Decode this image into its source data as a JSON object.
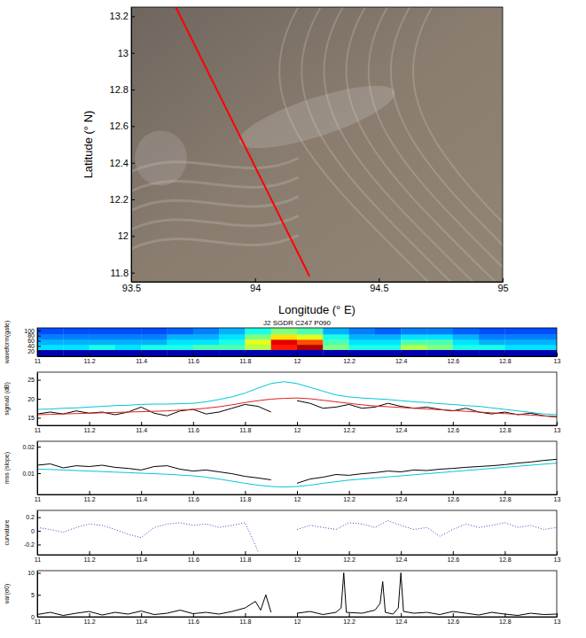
{
  "chart_data": [
    {
      "type": "map",
      "x_label": "Longitude (° E)",
      "y_label": "Latitude (° N)",
      "xlim": [
        93.5,
        95
      ],
      "ylim": [
        11.75,
        13.25
      ],
      "xticks": [
        93.5,
        94,
        94.5,
        95
      ],
      "yticks": [
        11.8,
        12,
        12.2,
        12.4,
        12.6,
        12.8,
        13,
        13.2
      ],
      "series": [
        {
          "type": "line",
          "color": "#ff0000",
          "x": [
            93.68,
            94.22
          ],
          "values": [
            13.25,
            11.78
          ]
        }
      ]
    },
    {
      "type": "heatmap",
      "title": "J2 SGDR C247 P090",
      "y_label": "waveform(gate)",
      "xlim": [
        11,
        13
      ],
      "ylim": [
        0,
        110
      ],
      "xticks": [
        11,
        11.2,
        11.4,
        11.6,
        11.8,
        12,
        12.2,
        12.4,
        12.6,
        12.8,
        13
      ],
      "yticks": [
        20,
        40,
        60,
        80,
        100
      ],
      "x_edges": [
        11,
        11.1,
        11.2,
        11.3,
        11.4,
        11.5,
        11.6,
        11.7,
        11.8,
        11.9,
        12,
        12.1,
        12.2,
        12.3,
        12.4,
        12.5,
        12.6,
        12.7,
        12.8,
        12.9,
        13
      ],
      "y_edges": [
        0,
        25,
        45,
        65,
        85,
        110
      ],
      "color_range": [
        0,
        1
      ],
      "cells": [
        [
          0.05,
          0.05,
          0.05,
          0.05,
          0.05,
          0.05,
          0.05,
          0.05,
          0.05,
          0.05,
          0.05,
          0.05,
          0.05,
          0.05,
          0.05,
          0.05,
          0.05,
          0.05,
          0.05,
          0.05
        ],
        [
          0.35,
          0.35,
          0.4,
          0.35,
          0.4,
          0.4,
          0.45,
          0.45,
          0.55,
          0.85,
          0.95,
          0.5,
          0.4,
          0.4,
          0.55,
          0.5,
          0.4,
          0.4,
          0.35,
          0.35
        ],
        [
          0.3,
          0.3,
          0.3,
          0.3,
          0.3,
          0.35,
          0.35,
          0.4,
          0.6,
          0.9,
          0.8,
          0.45,
          0.35,
          0.35,
          0.45,
          0.45,
          0.35,
          0.3,
          0.3,
          0.3
        ],
        [
          0.25,
          0.25,
          0.25,
          0.25,
          0.25,
          0.3,
          0.3,
          0.35,
          0.5,
          0.65,
          0.6,
          0.4,
          0.3,
          0.3,
          0.35,
          0.35,
          0.3,
          0.25,
          0.25,
          0.25
        ],
        [
          0.2,
          0.2,
          0.2,
          0.2,
          0.2,
          0.22,
          0.25,
          0.3,
          0.4,
          0.5,
          0.45,
          0.3,
          0.25,
          0.22,
          0.25,
          0.25,
          0.22,
          0.2,
          0.2,
          0.2
        ]
      ]
    },
    {
      "type": "line",
      "y_label": "sigma0 (dB)",
      "xlim": [
        11,
        13
      ],
      "ylim": [
        13,
        27
      ],
      "xticks": [
        11,
        11.2,
        11.4,
        11.6,
        11.8,
        12,
        12.2,
        12.4,
        12.6,
        12.8,
        13
      ],
      "yticks": [
        15,
        20,
        25
      ],
      "x": [
        11,
        11.05,
        11.1,
        11.15,
        11.2,
        11.25,
        11.3,
        11.35,
        11.4,
        11.45,
        11.5,
        11.55,
        11.6,
        11.65,
        11.7,
        11.75,
        11.8,
        11.85,
        11.9,
        11.95,
        12,
        12.05,
        12.1,
        12.15,
        12.2,
        12.25,
        12.3,
        12.35,
        12.4,
        12.45,
        12.5,
        12.55,
        12.6,
        12.65,
        12.7,
        12.75,
        12.8,
        12.85,
        12.9,
        12.95,
        13
      ],
      "series": [
        {
          "color": "#00c8d8",
          "line_style": "solid",
          "values": [
            17.2,
            17.3,
            17.5,
            17.6,
            17.8,
            18,
            18.2,
            18.3,
            18.5,
            18.6,
            18.6,
            18.7,
            18.8,
            19.2,
            19.8,
            20.5,
            21.5,
            22.8,
            24,
            24.5,
            24,
            23,
            22,
            21,
            20.5,
            20.2,
            20,
            19.8,
            19.5,
            19.2,
            19,
            18.7,
            18.5,
            18.2,
            18,
            17.6,
            17.2,
            16.8,
            16.4,
            16,
            15.8
          ]
        },
        {
          "color": "#000000",
          "line_style": "solid",
          "values": [
            16,
            16.5,
            16,
            16.8,
            16.2,
            16.5,
            15.8,
            16.5,
            17.8,
            16.2,
            15.5,
            16.8,
            17.2,
            16,
            16.5,
            17.5,
            18.5,
            18,
            16.5,
            null,
            19.5,
            18.8,
            17.5,
            17.8,
            18.5,
            17.5,
            17.8,
            18.8,
            18,
            17.5,
            17.8,
            17.2,
            16.8,
            17.5,
            16.5,
            16,
            16.5,
            15.8,
            16.2,
            15.5,
            15.2
          ]
        },
        {
          "color": "#e02020",
          "line_style": "solid",
          "values": [
            15.8,
            15.9,
            16,
            16.1,
            16.2,
            16.3,
            16.4,
            16.5,
            16.6,
            16.7,
            16.8,
            17,
            17.2,
            17.5,
            17.9,
            18.4,
            19,
            19.5,
            19.9,
            20.1,
            20.2,
            20,
            19.6,
            19.2,
            18.8,
            18.4,
            18.1,
            17.9,
            17.7,
            17.5,
            17.3,
            17.1,
            16.9,
            16.7,
            16.5,
            16.3,
            16.1,
            15.9,
            15.7,
            15.5,
            15.3
          ]
        }
      ]
    },
    {
      "type": "line",
      "y_label": "mss (slope)",
      "xlim": [
        11,
        13
      ],
      "ylim": [
        0.002,
        0.022
      ],
      "xticks": [
        11,
        11.2,
        11.4,
        11.6,
        11.8,
        12,
        12.2,
        12.4,
        12.6,
        12.8,
        13
      ],
      "yticks": [
        0.01,
        0.02
      ],
      "x": [
        11,
        11.05,
        11.1,
        11.15,
        11.2,
        11.25,
        11.3,
        11.35,
        11.4,
        11.45,
        11.5,
        11.55,
        11.6,
        11.65,
        11.7,
        11.75,
        11.8,
        11.85,
        11.9,
        11.95,
        12,
        12.05,
        12.1,
        12.15,
        12.2,
        12.25,
        12.3,
        12.35,
        12.4,
        12.45,
        12.5,
        12.55,
        12.6,
        12.65,
        12.7,
        12.75,
        12.8,
        12.85,
        12.9,
        12.95,
        13
      ],
      "series": [
        {
          "color": "#00c8d8",
          "line_style": "solid",
          "values": [
            0.0115,
            0.0114,
            0.0112,
            0.011,
            0.0108,
            0.0106,
            0.0104,
            0.0102,
            0.01,
            0.0098,
            0.0096,
            0.0093,
            0.009,
            0.0085,
            0.0078,
            0.007,
            0.0062,
            0.0055,
            0.005,
            0.0048,
            0.005,
            0.0055,
            0.0062,
            0.0068,
            0.0074,
            0.0078,
            0.0082,
            0.0086,
            0.009,
            0.0094,
            0.0098,
            0.0102,
            0.0106,
            0.011,
            0.0114,
            0.0118,
            0.0122,
            0.0126,
            0.013,
            0.0134,
            0.0138
          ]
        },
        {
          "color": "#000000",
          "line_style": "solid",
          "values": [
            0.013,
            0.0135,
            0.012,
            0.0128,
            0.0125,
            0.013,
            0.0122,
            0.0118,
            0.0112,
            0.0125,
            0.0128,
            0.0115,
            0.0108,
            0.0112,
            0.0105,
            0.0098,
            0.0088,
            0.0082,
            0.0075,
            null,
            0.0062,
            0.0078,
            0.0085,
            0.0095,
            0.0092,
            0.0098,
            0.0102,
            0.0108,
            0.0105,
            0.0112,
            0.011,
            0.0115,
            0.0118,
            0.0122,
            0.0125,
            0.0128,
            0.0132,
            0.0138,
            0.0142,
            0.0148,
            0.0152
          ]
        }
      ]
    },
    {
      "type": "line",
      "y_label": "curvature",
      "xlim": [
        11,
        13
      ],
      "ylim": [
        -0.35,
        0.3
      ],
      "xticks": [
        11,
        11.2,
        11.4,
        11.6,
        11.8,
        12,
        12.2,
        12.4,
        12.6,
        12.8,
        13
      ],
      "yticks": [
        -0.2,
        0,
        0.2
      ],
      "x": [
        11,
        11.05,
        11.1,
        11.15,
        11.2,
        11.25,
        11.3,
        11.35,
        11.4,
        11.45,
        11.5,
        11.55,
        11.6,
        11.65,
        11.7,
        11.75,
        11.8,
        11.85,
        11.9,
        11.95,
        12,
        12.05,
        12.1,
        12.15,
        12.2,
        12.25,
        12.3,
        12.35,
        12.4,
        12.45,
        12.5,
        12.55,
        12.6,
        12.65,
        12.7,
        12.75,
        12.8,
        12.85,
        12.9,
        12.95,
        13
      ],
      "series": [
        {
          "color": "#4040c0",
          "line_style": "dotted",
          "values": [
            0.05,
            0.02,
            -0.02,
            0.05,
            0.1,
            0.08,
            0.02,
            -0.05,
            -0.1,
            0.05,
            0.1,
            0.12,
            0.08,
            0.1,
            0.05,
            0.08,
            0.12,
            -0.3,
            null,
            null,
            0.02,
            0.08,
            0.05,
            0.02,
            0.12,
            0.1,
            0.05,
            0.15,
            0.08,
            0.02,
            0.05,
            -0.08,
            0.02,
            0.1,
            0.05,
            0.08,
            0.12,
            0.05,
            0.08,
            0.02,
            0.05
          ]
        }
      ]
    },
    {
      "type": "line",
      "y_label": "var(σ0)",
      "xlim": [
        11,
        13
      ],
      "ylim": [
        0,
        10.5
      ],
      "xticks": [
        11,
        11.2,
        11.4,
        11.6,
        11.8,
        12,
        12.2,
        12.4,
        12.6,
        12.8,
        13
      ],
      "yticks": [
        0,
        5,
        10
      ],
      "x": [
        11,
        11.05,
        11.1,
        11.15,
        11.2,
        11.25,
        11.3,
        11.35,
        11.4,
        11.45,
        11.5,
        11.55,
        11.6,
        11.65,
        11.7,
        11.75,
        11.8,
        11.84,
        11.86,
        11.88,
        11.9,
        11.95,
        12,
        12.05,
        12.1,
        12.15,
        12.17,
        12.18,
        12.19,
        12.25,
        12.3,
        12.32,
        12.33,
        12.34,
        12.37,
        12.39,
        12.4,
        12.41,
        12.45,
        12.5,
        12.55,
        12.6,
        12.65,
        12.7,
        12.75,
        12.8,
        12.85,
        12.9,
        12.95,
        13
      ],
      "series": [
        {
          "color": "#000000",
          "line_style": "solid",
          "values": [
            0.5,
            1,
            0.3,
            0.8,
            1.2,
            0.4,
            1,
            0.6,
            1.3,
            0.5,
            0.8,
            1.5,
            0.7,
            1,
            0.6,
            1.2,
            2,
            3.5,
            1.5,
            5,
            1,
            null,
            0.8,
            1.2,
            0.5,
            1,
            2,
            10,
            1,
            0.8,
            1.5,
            3,
            8,
            1,
            0.6,
            2,
            10,
            1.2,
            0.8,
            1,
            0.5,
            1.2,
            0.8,
            0.4,
            1,
            0.6,
            0.3,
            0.8,
            0.5,
            0.6
          ]
        }
      ]
    }
  ]
}
